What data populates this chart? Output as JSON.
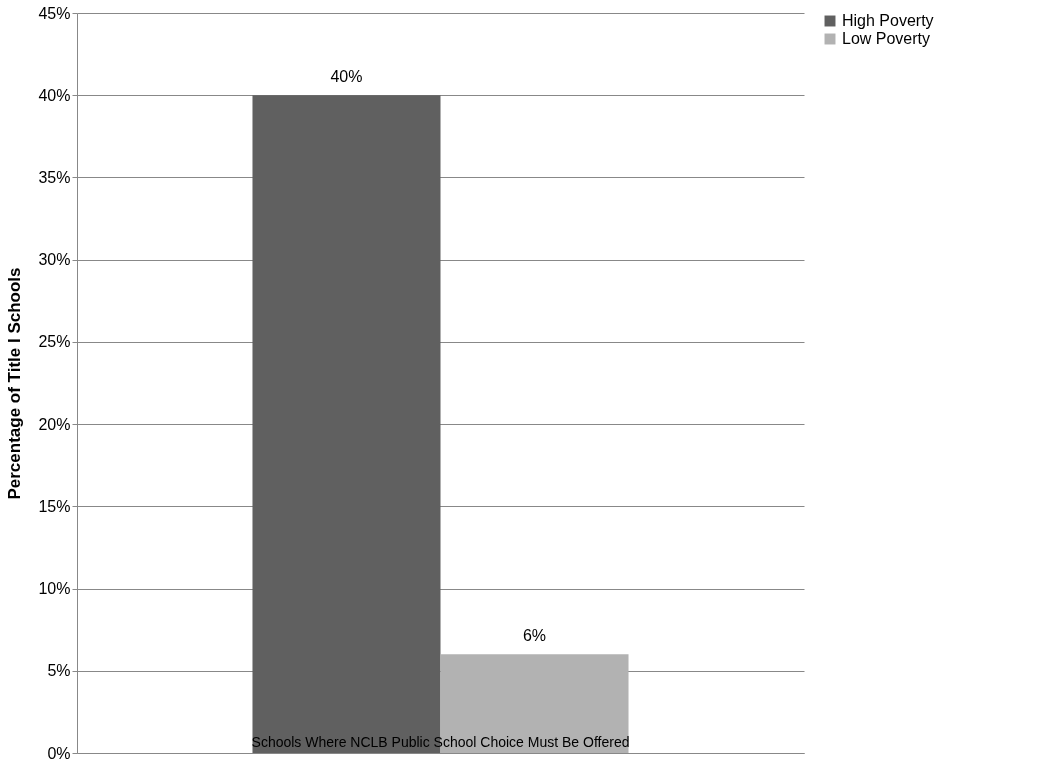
{
  "chart_data": {
    "type": "bar",
    "ylabel": "Percentage of Title I Schools",
    "categories": [
      "Schools Where NCLB Public School Choice Must Be Offered"
    ],
    "series": [
      {
        "name": "High Poverty",
        "color": "#606060",
        "values": [
          40
        ],
        "value_labels": [
          "40%"
        ]
      },
      {
        "name": "Low Poverty",
        "color": "#b2b2b2",
        "values": [
          6
        ],
        "value_labels": [
          "6%"
        ]
      }
    ],
    "ylim": [
      0,
      45
    ],
    "yticks": [
      {
        "value": 0,
        "label": "0%"
      },
      {
        "value": 5,
        "label": "5%"
      },
      {
        "value": 10,
        "label": "10%"
      },
      {
        "value": 15,
        "label": "15%"
      },
      {
        "value": 20,
        "label": "20%"
      },
      {
        "value": 25,
        "label": "25%"
      },
      {
        "value": 30,
        "label": "30%"
      },
      {
        "value": 35,
        "label": "35%"
      },
      {
        "value": 40,
        "label": "40%"
      },
      {
        "value": 45,
        "label": "45%"
      }
    ],
    "grid": "y",
    "legend": "right"
  }
}
